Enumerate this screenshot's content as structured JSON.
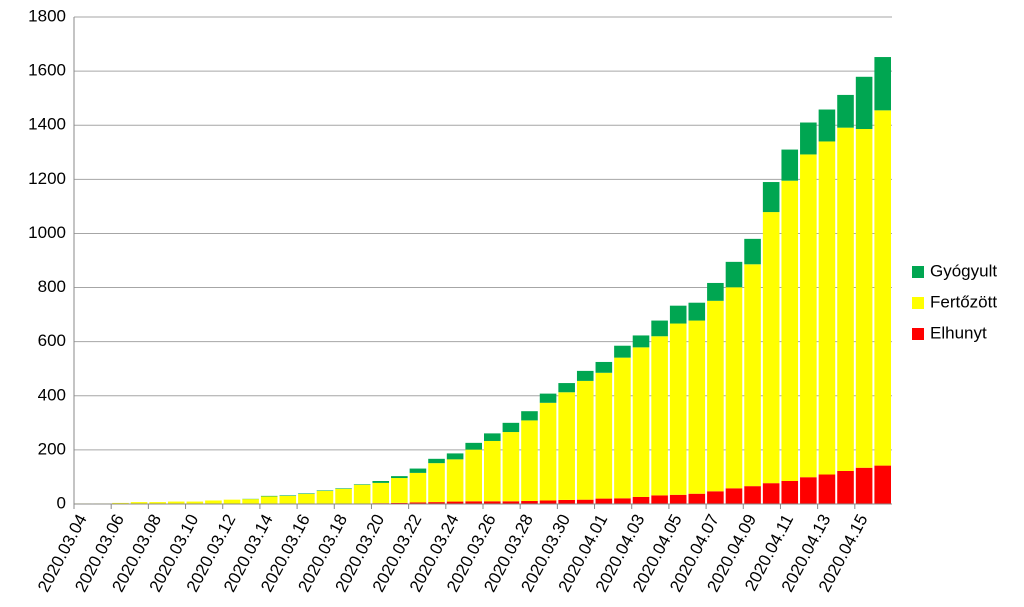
{
  "chart_data": {
    "type": "stacked-bar",
    "categories": [
      "2020.03.04",
      null,
      "2020.03.06",
      null,
      "2020.03.08",
      null,
      "2020.03.10",
      null,
      "2020.03.12",
      null,
      "2020.03.14",
      null,
      "2020.03.16",
      null,
      "2020.03.18",
      null,
      "2020.03.20",
      null,
      "2020.03.22",
      null,
      "2020.03.24",
      null,
      "2020.03.26",
      null,
      "2020.03.28",
      null,
      "2020.03.30",
      null,
      "2020.04.01",
      null,
      "2020.04.03",
      null,
      "2020.04.05",
      null,
      "2020.04.07",
      null,
      "2020.04.09",
      null,
      "2020.04.11",
      null,
      "2020.04.13",
      null,
      "2020.04.15",
      null
    ],
    "series": [
      {
        "name": "Gyógyult",
        "color": "#00a651",
        "values": [
          0,
          0,
          0,
          0,
          0,
          0,
          0,
          0,
          0,
          1,
          2,
          2,
          2,
          2,
          2,
          2,
          7,
          7,
          16,
          16,
          22,
          25,
          28,
          34,
          34,
          34,
          34,
          37,
          40,
          44,
          44,
          58,
          66,
          66,
          66,
          94,
          94,
          111,
          115,
          118,
          118,
          121,
          193,
          197
        ]
      },
      {
        "name": "Fertőzött",
        "color": "#ffff00",
        "values": [
          2,
          2,
          4,
          7,
          7,
          9,
          9,
          13,
          16,
          18,
          28,
          29,
          36,
          47,
          55,
          70,
          75,
          92,
          109,
          144,
          156,
          191,
          223,
          256,
          298,
          361,
          398,
          439,
          465,
          520,
          553,
          588,
          633,
          640,
          704,
          743,
          820,
          1002,
          1110,
          1193,
          1231,
          1269,
          1252,
          1313
        ]
      },
      {
        "name": "Elhunyt",
        "color": "#ff0000",
        "values": [
          0,
          0,
          0,
          0,
          0,
          0,
          0,
          0,
          0,
          0,
          0,
          1,
          1,
          1,
          1,
          1,
          3,
          4,
          6,
          7,
          9,
          10,
          10,
          10,
          11,
          13,
          15,
          16,
          20,
          21,
          26,
          32,
          34,
          38,
          47,
          58,
          66,
          77,
          85,
          99,
          109,
          122,
          134,
          142
        ]
      }
    ],
    "ylim": [
      0,
      1800
    ],
    "yticks": [
      0,
      200,
      400,
      600,
      800,
      1000,
      1200,
      1400,
      1600,
      1800
    ],
    "grid": true,
    "legend": "right"
  }
}
